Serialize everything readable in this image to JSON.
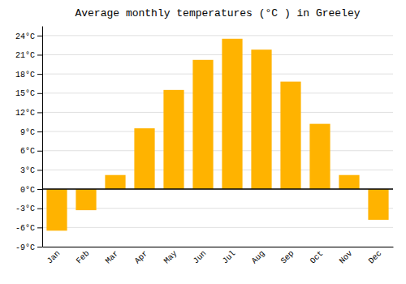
{
  "chart_data": {
    "type": "bar",
    "title": "Average monthly temperatures (°C ) in Greeley",
    "categories": [
      "Jan",
      "Feb",
      "Mar",
      "Apr",
      "May",
      "Jun",
      "Jul",
      "Aug",
      "Sep",
      "Oct",
      "Nov",
      "Dec"
    ],
    "values": [
      -6.5,
      -3.3,
      2.2,
      9.5,
      15.5,
      20.2,
      23.5,
      21.8,
      16.8,
      10.2,
      2.2,
      -4.8
    ],
    "color": "#FFB300",
    "ylim": [
      -9,
      25.5
    ],
    "yticks": [
      {
        "value": -9,
        "label": "-9°C"
      },
      {
        "value": -6,
        "label": "-6°C"
      },
      {
        "value": -3,
        "label": "-3°C"
      },
      {
        "value": 0,
        "label": "0°C"
      },
      {
        "value": 3,
        "label": "3°C"
      },
      {
        "value": 6,
        "label": "6°C"
      },
      {
        "value": 9,
        "label": "9°C"
      },
      {
        "value": 12,
        "label": "12°C"
      },
      {
        "value": 15,
        "label": "15°C"
      },
      {
        "value": 18,
        "label": "18°C"
      },
      {
        "value": 21,
        "label": "21°C"
      },
      {
        "value": 24,
        "label": "24°C"
      }
    ],
    "grid": true
  }
}
